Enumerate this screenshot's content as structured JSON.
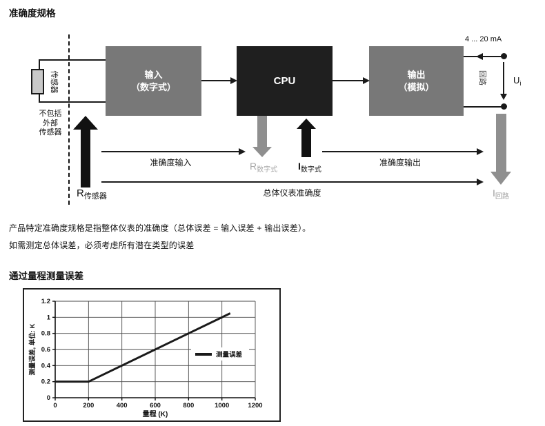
{
  "page": {
    "title": "准确度规格",
    "paragraph1": "产品特定准确度规格是指整体仪表的准确度（总体误差 = 输入误差 + 输出误差）。",
    "paragraph2": "如需测定总体误差，必须考虑所有潜在类型的误差",
    "section2_title": "通过量程测量误差"
  },
  "diagram": {
    "sensor_label": "传感器",
    "sensor_note": {
      "line1": "不包括",
      "line2": "外部",
      "line3": "传感器"
    },
    "input_box": {
      "line1": "输入",
      "line2": "（数字式）"
    },
    "cpu_box": {
      "label": "CPU"
    },
    "output_box": {
      "line1": "输出",
      "line2": "（模拟）"
    },
    "current_range": "4 ... 20 mA",
    "loop_label": "回路",
    "voltage_label": {
      "base": "U",
      "sub": "i"
    },
    "r_sensor": {
      "base": "R",
      "sub": "传感器"
    },
    "r_digital": {
      "base": "R",
      "sub": "数字式"
    },
    "i_digital": {
      "base": "I",
      "sub": "数字式"
    },
    "i_loop": {
      "base": "I",
      "sub": "回路"
    },
    "accuracy_input": "准确度输入",
    "accuracy_output": "准确度输出",
    "overall_accuracy": "总体仪表准确度"
  },
  "colors": {
    "ink": "#1a1a1a",
    "box_gray": "#787878",
    "cpu_black": "#1f1f1f",
    "arrow_gray": "#8f8f8f",
    "sensor_fill": "#c9c9c9",
    "muted_gray": "#a9a9a9"
  },
  "chart_data": {
    "type": "line",
    "title": "",
    "xlabel": "量程 (K)",
    "ylabel": "测量误差, 单位: K",
    "xlim": [
      0,
      1200
    ],
    "ylim": [
      0,
      1.2
    ],
    "xticks": [
      0,
      200,
      400,
      600,
      800,
      1000,
      1200
    ],
    "yticks": [
      0,
      0.2,
      0.4,
      0.6,
      0.8,
      1,
      1.2
    ],
    "ytick_labels": [
      "0",
      "0.2",
      "0.4",
      "0.6",
      "0.8",
      "1",
      "1.2"
    ],
    "grid": true,
    "legend": {
      "position": "inside-right",
      "entries": [
        "测量误差"
      ]
    },
    "series": [
      {
        "name": "测量误差",
        "x": [
          0,
          200,
          1050
        ],
        "y": [
          0.2,
          0.2,
          1.05
        ]
      }
    ],
    "line_color": "#1a1a1a",
    "line_width": 3
  }
}
